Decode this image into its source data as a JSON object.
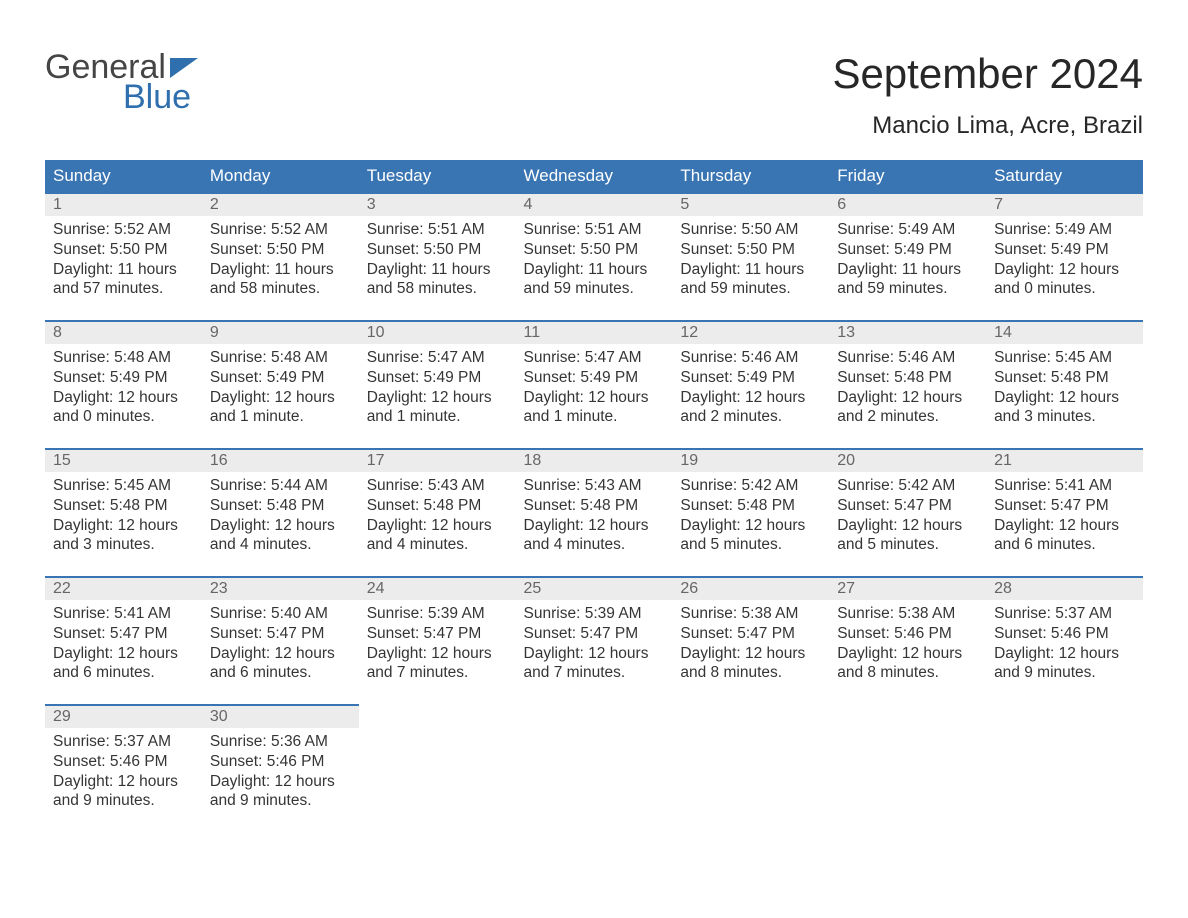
{
  "logo": {
    "text1": "General",
    "text2": "Blue"
  },
  "title": "September 2024",
  "location": "Mancio Lima, Acre, Brazil",
  "colors": {
    "header_bg": "#3a75b3",
    "header_text": "#ffffff",
    "daynum_bg": "#ececec",
    "daynum_border": "#3a75b3",
    "daynum_text": "#666666",
    "body_text": "#353535",
    "logo_accent": "#2f6fae"
  },
  "weekdays": [
    "Sunday",
    "Monday",
    "Tuesday",
    "Wednesday",
    "Thursday",
    "Friday",
    "Saturday"
  ],
  "weeks": [
    [
      {
        "n": "1",
        "sr": "Sunrise: 5:52 AM",
        "ss": "Sunset: 5:50 PM",
        "d1": "Daylight: 11 hours",
        "d2": "and 57 minutes."
      },
      {
        "n": "2",
        "sr": "Sunrise: 5:52 AM",
        "ss": "Sunset: 5:50 PM",
        "d1": "Daylight: 11 hours",
        "d2": "and 58 minutes."
      },
      {
        "n": "3",
        "sr": "Sunrise: 5:51 AM",
        "ss": "Sunset: 5:50 PM",
        "d1": "Daylight: 11 hours",
        "d2": "and 58 minutes."
      },
      {
        "n": "4",
        "sr": "Sunrise: 5:51 AM",
        "ss": "Sunset: 5:50 PM",
        "d1": "Daylight: 11 hours",
        "d2": "and 59 minutes."
      },
      {
        "n": "5",
        "sr": "Sunrise: 5:50 AM",
        "ss": "Sunset: 5:50 PM",
        "d1": "Daylight: 11 hours",
        "d2": "and 59 minutes."
      },
      {
        "n": "6",
        "sr": "Sunrise: 5:49 AM",
        "ss": "Sunset: 5:49 PM",
        "d1": "Daylight: 11 hours",
        "d2": "and 59 minutes."
      },
      {
        "n": "7",
        "sr": "Sunrise: 5:49 AM",
        "ss": "Sunset: 5:49 PM",
        "d1": "Daylight: 12 hours",
        "d2": "and 0 minutes."
      }
    ],
    [
      {
        "n": "8",
        "sr": "Sunrise: 5:48 AM",
        "ss": "Sunset: 5:49 PM",
        "d1": "Daylight: 12 hours",
        "d2": "and 0 minutes."
      },
      {
        "n": "9",
        "sr": "Sunrise: 5:48 AM",
        "ss": "Sunset: 5:49 PM",
        "d1": "Daylight: 12 hours",
        "d2": "and 1 minute."
      },
      {
        "n": "10",
        "sr": "Sunrise: 5:47 AM",
        "ss": "Sunset: 5:49 PM",
        "d1": "Daylight: 12 hours",
        "d2": "and 1 minute."
      },
      {
        "n": "11",
        "sr": "Sunrise: 5:47 AM",
        "ss": "Sunset: 5:49 PM",
        "d1": "Daylight: 12 hours",
        "d2": "and 1 minute."
      },
      {
        "n": "12",
        "sr": "Sunrise: 5:46 AM",
        "ss": "Sunset: 5:49 PM",
        "d1": "Daylight: 12 hours",
        "d2": "and 2 minutes."
      },
      {
        "n": "13",
        "sr": "Sunrise: 5:46 AM",
        "ss": "Sunset: 5:48 PM",
        "d1": "Daylight: 12 hours",
        "d2": "and 2 minutes."
      },
      {
        "n": "14",
        "sr": "Sunrise: 5:45 AM",
        "ss": "Sunset: 5:48 PM",
        "d1": "Daylight: 12 hours",
        "d2": "and 3 minutes."
      }
    ],
    [
      {
        "n": "15",
        "sr": "Sunrise: 5:45 AM",
        "ss": "Sunset: 5:48 PM",
        "d1": "Daylight: 12 hours",
        "d2": "and 3 minutes."
      },
      {
        "n": "16",
        "sr": "Sunrise: 5:44 AM",
        "ss": "Sunset: 5:48 PM",
        "d1": "Daylight: 12 hours",
        "d2": "and 4 minutes."
      },
      {
        "n": "17",
        "sr": "Sunrise: 5:43 AM",
        "ss": "Sunset: 5:48 PM",
        "d1": "Daylight: 12 hours",
        "d2": "and 4 minutes."
      },
      {
        "n": "18",
        "sr": "Sunrise: 5:43 AM",
        "ss": "Sunset: 5:48 PM",
        "d1": "Daylight: 12 hours",
        "d2": "and 4 minutes."
      },
      {
        "n": "19",
        "sr": "Sunrise: 5:42 AM",
        "ss": "Sunset: 5:48 PM",
        "d1": "Daylight: 12 hours",
        "d2": "and 5 minutes."
      },
      {
        "n": "20",
        "sr": "Sunrise: 5:42 AM",
        "ss": "Sunset: 5:47 PM",
        "d1": "Daylight: 12 hours",
        "d2": "and 5 minutes."
      },
      {
        "n": "21",
        "sr": "Sunrise: 5:41 AM",
        "ss": "Sunset: 5:47 PM",
        "d1": "Daylight: 12 hours",
        "d2": "and 6 minutes."
      }
    ],
    [
      {
        "n": "22",
        "sr": "Sunrise: 5:41 AM",
        "ss": "Sunset: 5:47 PM",
        "d1": "Daylight: 12 hours",
        "d2": "and 6 minutes."
      },
      {
        "n": "23",
        "sr": "Sunrise: 5:40 AM",
        "ss": "Sunset: 5:47 PM",
        "d1": "Daylight: 12 hours",
        "d2": "and 6 minutes."
      },
      {
        "n": "24",
        "sr": "Sunrise: 5:39 AM",
        "ss": "Sunset: 5:47 PM",
        "d1": "Daylight: 12 hours",
        "d2": "and 7 minutes."
      },
      {
        "n": "25",
        "sr": "Sunrise: 5:39 AM",
        "ss": "Sunset: 5:47 PM",
        "d1": "Daylight: 12 hours",
        "d2": "and 7 minutes."
      },
      {
        "n": "26",
        "sr": "Sunrise: 5:38 AM",
        "ss": "Sunset: 5:47 PM",
        "d1": "Daylight: 12 hours",
        "d2": "and 8 minutes."
      },
      {
        "n": "27",
        "sr": "Sunrise: 5:38 AM",
        "ss": "Sunset: 5:46 PM",
        "d1": "Daylight: 12 hours",
        "d2": "and 8 minutes."
      },
      {
        "n": "28",
        "sr": "Sunrise: 5:37 AM",
        "ss": "Sunset: 5:46 PM",
        "d1": "Daylight: 12 hours",
        "d2": "and 9 minutes."
      }
    ],
    [
      {
        "n": "29",
        "sr": "Sunrise: 5:37 AM",
        "ss": "Sunset: 5:46 PM",
        "d1": "Daylight: 12 hours",
        "d2": "and 9 minutes."
      },
      {
        "n": "30",
        "sr": "Sunrise: 5:36 AM",
        "ss": "Sunset: 5:46 PM",
        "d1": "Daylight: 12 hours",
        "d2": "and 9 minutes."
      },
      null,
      null,
      null,
      null,
      null
    ]
  ]
}
